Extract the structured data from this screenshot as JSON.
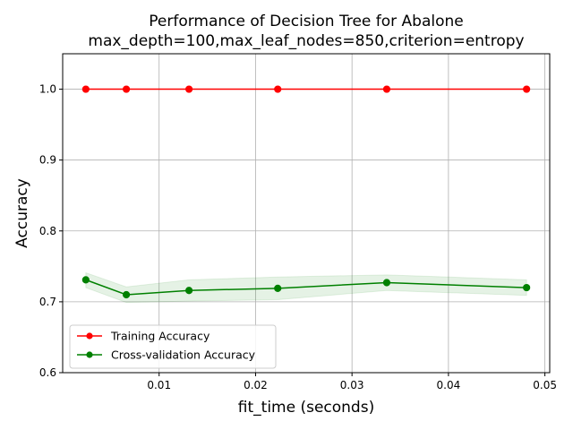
{
  "chart_data": {
    "type": "line",
    "title": "Performance of Decision Tree for Abalone",
    "subtitle": "max_depth=100,max_leaf_nodes=850,criterion=entropy",
    "xlabel": "fit_time (seconds)",
    "ylabel": "Accuracy",
    "xlim": [
      0.0,
      0.0505
    ],
    "ylim": [
      0.6,
      1.05
    ],
    "xticks": [
      0.01,
      0.02,
      0.03,
      0.04,
      0.05
    ],
    "xtick_labels": [
      "0.01",
      "0.02",
      "0.03",
      "0.04",
      "0.05"
    ],
    "yticks": [
      0.6,
      0.7,
      0.8,
      0.9,
      1.0
    ],
    "ytick_labels": [
      "0.6",
      "0.7",
      "0.8",
      "0.9",
      "1.0"
    ],
    "grid": true,
    "legend_position": "lower-left",
    "series": [
      {
        "name": "Training Accuracy",
        "color": "#ff0000",
        "marker": "circle",
        "x": [
          0.0024,
          0.0066,
          0.0131,
          0.0223,
          0.0336,
          0.0481
        ],
        "y": [
          1.0,
          1.0,
          1.0,
          1.0,
          1.0,
          1.0
        ],
        "band_low": [
          1.0,
          1.0,
          1.0,
          1.0,
          1.0,
          1.0
        ],
        "band_high": [
          1.0,
          1.0,
          1.0,
          1.0,
          1.0,
          1.0
        ]
      },
      {
        "name": "Cross-validation Accuracy",
        "color": "#008000",
        "band_color": "#008000",
        "marker": "circle",
        "x": [
          0.0024,
          0.0066,
          0.0131,
          0.0223,
          0.0336,
          0.0481
        ],
        "y": [
          0.731,
          0.71,
          0.716,
          0.719,
          0.727,
          0.72
        ],
        "band_low": [
          0.72,
          0.699,
          0.701,
          0.703,
          0.716,
          0.709
        ],
        "band_high": [
          0.741,
          0.721,
          0.731,
          0.735,
          0.738,
          0.731
        ]
      }
    ]
  }
}
